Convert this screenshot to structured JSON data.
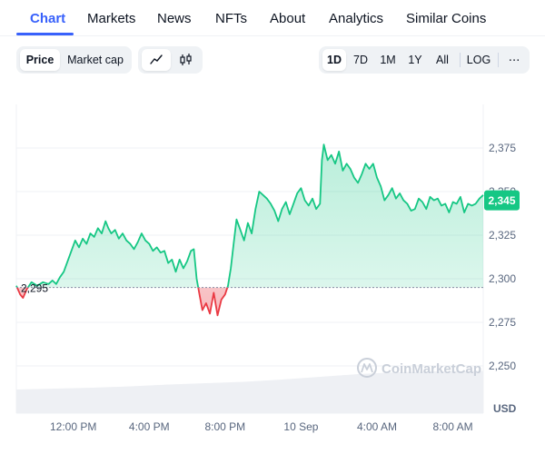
{
  "tabs": [
    {
      "label": "Chart",
      "active": true
    },
    {
      "label": "Markets"
    },
    {
      "label": "News"
    },
    {
      "label": "NFTs"
    },
    {
      "label": "About"
    },
    {
      "label": "Analytics"
    },
    {
      "label": "Similar Coins"
    }
  ],
  "toolbar": {
    "price_label": "Price",
    "marketcap_label": "Market cap",
    "line_icon": "line-chart-icon",
    "candle_icon": "candlestick-icon",
    "ranges": [
      "1D",
      "7D",
      "1M",
      "1Y",
      "All"
    ],
    "active_range": "1D",
    "log_label": "LOG",
    "more_label": "⋯"
  },
  "colors": {
    "accent": "#3861fb",
    "up": "#16c784",
    "down": "#ea3943",
    "grid": "#eff2f5"
  },
  "watermark": "CoinMarketCap",
  "currency_label": "USD",
  "chart_data": {
    "type": "area",
    "ylim": [
      2240,
      2390
    ],
    "yticks": [
      "2,375",
      "2,350",
      "2,325",
      "2,300",
      "2,275",
      "2,250"
    ],
    "ytick_values": [
      2375,
      2350,
      2325,
      2300,
      2275,
      2250
    ],
    "xticks": [
      "12:00 PM",
      "4:00 PM",
      "8:00 PM",
      "10 Sep",
      "4:00 AM",
      "8:00 AM"
    ],
    "xtick_hours": [
      3,
      7,
      11,
      15,
      19,
      23
    ],
    "baseline_label": "2,295",
    "baseline": 2295,
    "current_label": "2,345",
    "current": 2345,
    "series": [
      {
        "values": [
          [
            0.0,
            2296
          ],
          [
            0.2,
            2291
          ],
          [
            0.35,
            2289
          ],
          [
            0.55,
            2294
          ],
          [
            0.8,
            2298
          ],
          [
            1.1,
            2296
          ],
          [
            1.4,
            2298
          ],
          [
            1.7,
            2297
          ],
          [
            1.9,
            2299
          ],
          [
            2.1,
            2297
          ],
          [
            2.3,
            2301
          ],
          [
            2.5,
            2304
          ],
          [
            2.7,
            2310
          ],
          [
            2.9,
            2316
          ],
          [
            3.1,
            2322
          ],
          [
            3.3,
            2318
          ],
          [
            3.5,
            2323
          ],
          [
            3.7,
            2320
          ],
          [
            3.9,
            2326
          ],
          [
            4.1,
            2324
          ],
          [
            4.3,
            2329
          ],
          [
            4.5,
            2326
          ],
          [
            4.7,
            2333
          ],
          [
            4.85,
            2329
          ],
          [
            5.0,
            2326
          ],
          [
            5.2,
            2328
          ],
          [
            5.4,
            2323
          ],
          [
            5.6,
            2326
          ],
          [
            5.8,
            2322
          ],
          [
            6.0,
            2320
          ],
          [
            6.2,
            2317
          ],
          [
            6.4,
            2321
          ],
          [
            6.6,
            2326
          ],
          [
            6.8,
            2322
          ],
          [
            7.0,
            2320
          ],
          [
            7.2,
            2316
          ],
          [
            7.4,
            2318
          ],
          [
            7.6,
            2315
          ],
          [
            7.8,
            2316
          ],
          [
            8.0,
            2309
          ],
          [
            8.2,
            2311
          ],
          [
            8.4,
            2304
          ],
          [
            8.6,
            2311
          ],
          [
            8.8,
            2306
          ],
          [
            9.0,
            2310
          ],
          [
            9.2,
            2316
          ],
          [
            9.35,
            2317
          ],
          [
            9.5,
            2300
          ],
          [
            9.65,
            2291
          ],
          [
            9.8,
            2282
          ],
          [
            10.0,
            2286
          ],
          [
            10.2,
            2280
          ],
          [
            10.4,
            2292
          ],
          [
            10.6,
            2279
          ],
          [
            10.8,
            2288
          ],
          [
            11.0,
            2291
          ],
          [
            11.15,
            2296
          ],
          [
            11.3,
            2306
          ],
          [
            11.45,
            2320
          ],
          [
            11.6,
            2334
          ],
          [
            11.8,
            2328
          ],
          [
            12.0,
            2322
          ],
          [
            12.2,
            2332
          ],
          [
            12.4,
            2326
          ],
          [
            12.6,
            2340
          ],
          [
            12.8,
            2350
          ],
          [
            13.0,
            2348
          ],
          [
            13.2,
            2346
          ],
          [
            13.4,
            2343
          ],
          [
            13.6,
            2339
          ],
          [
            13.8,
            2333
          ],
          [
            14.0,
            2340
          ],
          [
            14.2,
            2344
          ],
          [
            14.4,
            2337
          ],
          [
            14.6,
            2343
          ],
          [
            14.8,
            2349
          ],
          [
            15.0,
            2352
          ],
          [
            15.2,
            2345
          ],
          [
            15.4,
            2342
          ],
          [
            15.6,
            2346
          ],
          [
            15.8,
            2340
          ],
          [
            16.0,
            2343
          ],
          [
            16.1,
            2368
          ],
          [
            16.2,
            2377
          ],
          [
            16.4,
            2368
          ],
          [
            16.6,
            2371
          ],
          [
            16.8,
            2366
          ],
          [
            17.0,
            2373
          ],
          [
            17.2,
            2362
          ],
          [
            17.4,
            2366
          ],
          [
            17.6,
            2363
          ],
          [
            17.8,
            2358
          ],
          [
            18.0,
            2355
          ],
          [
            18.2,
            2360
          ],
          [
            18.4,
            2366
          ],
          [
            18.6,
            2363
          ],
          [
            18.8,
            2366
          ],
          [
            19.0,
            2358
          ],
          [
            19.2,
            2353
          ],
          [
            19.4,
            2345
          ],
          [
            19.6,
            2348
          ],
          [
            19.8,
            2352
          ],
          [
            20.0,
            2346
          ],
          [
            20.2,
            2349
          ],
          [
            20.4,
            2345
          ],
          [
            20.6,
            2343
          ],
          [
            20.8,
            2339
          ],
          [
            21.0,
            2340
          ],
          [
            21.2,
            2346
          ],
          [
            21.4,
            2344
          ],
          [
            21.6,
            2340
          ],
          [
            21.8,
            2347
          ],
          [
            22.0,
            2345
          ],
          [
            22.2,
            2346
          ],
          [
            22.4,
            2342
          ],
          [
            22.6,
            2343
          ],
          [
            22.8,
            2338
          ],
          [
            23.0,
            2344
          ],
          [
            23.2,
            2343
          ],
          [
            23.4,
            2347
          ],
          [
            23.6,
            2338
          ],
          [
            23.8,
            2343
          ],
          [
            24.0,
            2342
          ],
          [
            24.2,
            2343
          ],
          [
            24.4,
            2346
          ],
          [
            24.6,
            2348
          ]
        ]
      }
    ],
    "volume": [
      [
        0,
        0.52
      ],
      [
        2,
        0.54
      ],
      [
        4,
        0.56
      ],
      [
        6,
        0.59
      ],
      [
        8,
        0.63
      ],
      [
        10,
        0.66
      ],
      [
        12,
        0.69
      ],
      [
        14,
        0.74
      ],
      [
        16,
        0.8
      ],
      [
        18,
        0.86
      ],
      [
        20,
        0.9
      ],
      [
        22,
        0.92
      ],
      [
        24.6,
        0.93
      ]
    ]
  }
}
